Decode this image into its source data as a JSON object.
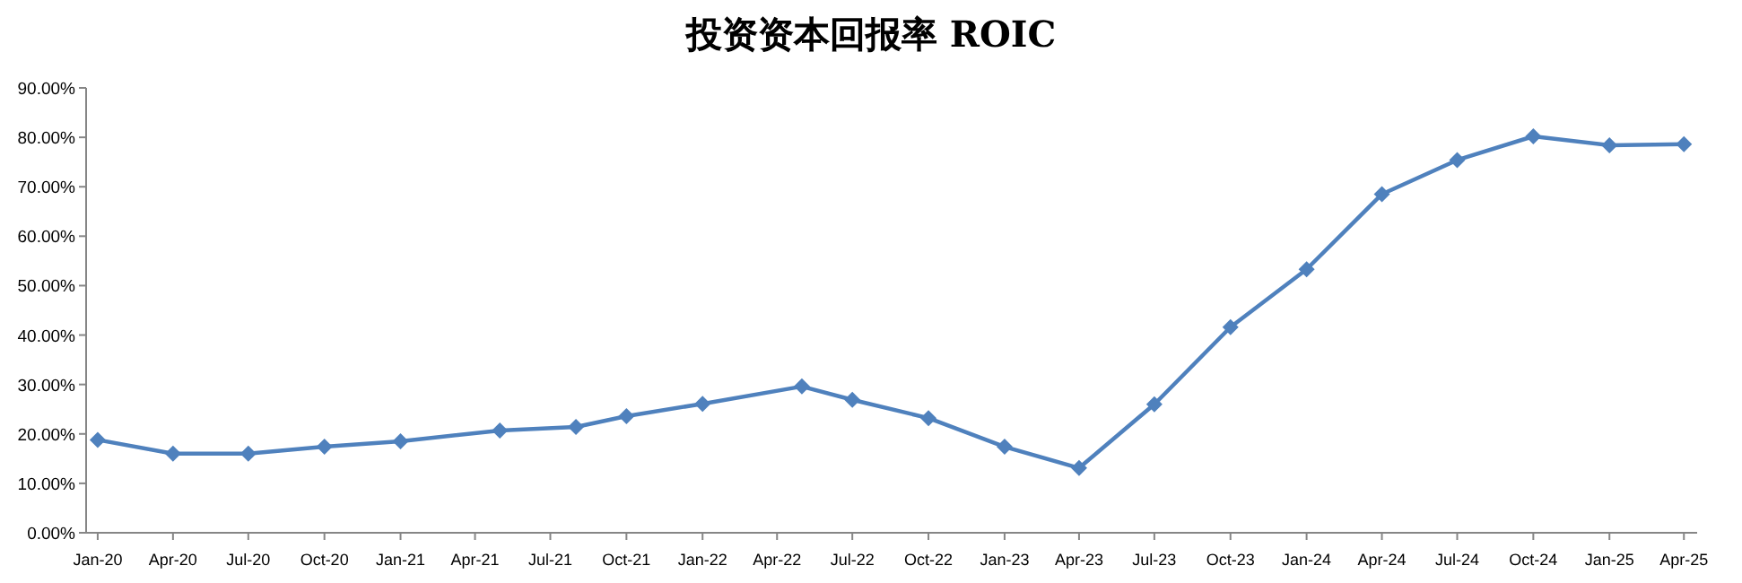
{
  "chart_data": {
    "type": "line",
    "title": "投资资本回报率 ROIC",
    "x": [
      "2020-01-15",
      "2020-04-15",
      "2020-07-15",
      "2020-10-15",
      "2021-01-15",
      "2021-05-15",
      "2021-08-15",
      "2021-10-15",
      "2022-01-15",
      "2022-05-15",
      "2022-07-15",
      "2022-10-15",
      "2023-01-15",
      "2023-04-15",
      "2023-07-15",
      "2023-10-15",
      "2024-01-15",
      "2024-04-15",
      "2024-07-15",
      "2024-10-15",
      "2025-01-15",
      "2025-04-15"
    ],
    "series": [
      {
        "color": "#4f81bd",
        "values": [
          18.8,
          16.0,
          16.0,
          17.4,
          18.5,
          20.7,
          21.4,
          23.6,
          26.1,
          29.6,
          26.9,
          23.2,
          17.4,
          13.1,
          26.0,
          41.6,
          53.3,
          68.5,
          75.4,
          80.2,
          78.4,
          78.6
        ]
      }
    ],
    "xlim": [
      "2020-01-01",
      "2025-05-01"
    ],
    "xticks": [
      {
        "value": "2020-01-15",
        "label": "Jan-20"
      },
      {
        "value": "2020-04-15",
        "label": "Apr-20"
      },
      {
        "value": "2020-07-15",
        "label": "Jul-20"
      },
      {
        "value": "2020-10-15",
        "label": "Oct-20"
      },
      {
        "value": "2021-01-15",
        "label": "Jan-21"
      },
      {
        "value": "2021-04-15",
        "label": "Apr-21"
      },
      {
        "value": "2021-07-15",
        "label": "Jul-21"
      },
      {
        "value": "2021-10-15",
        "label": "Oct-21"
      },
      {
        "value": "2022-01-15",
        "label": "Jan-22"
      },
      {
        "value": "2022-04-15",
        "label": "Apr-22"
      },
      {
        "value": "2022-07-15",
        "label": "Jul-22"
      },
      {
        "value": "2022-10-15",
        "label": "Oct-22"
      },
      {
        "value": "2023-01-15",
        "label": "Jan-23"
      },
      {
        "value": "2023-04-15",
        "label": "Apr-23"
      },
      {
        "value": "2023-07-15",
        "label": "Jul-23"
      },
      {
        "value": "2023-10-15",
        "label": "Oct-23"
      },
      {
        "value": "2024-01-15",
        "label": "Jan-24"
      },
      {
        "value": "2024-04-15",
        "label": "Apr-24"
      },
      {
        "value": "2024-07-15",
        "label": "Jul-24"
      },
      {
        "value": "2024-10-15",
        "label": "Oct-24"
      },
      {
        "value": "2025-01-15",
        "label": "Jan-25"
      },
      {
        "value": "2025-04-15",
        "label": "Apr-25"
      }
    ],
    "ylim": [
      0,
      90
    ],
    "yticks": [
      {
        "value": 0,
        "label": "0.00%"
      },
      {
        "value": 10,
        "label": "10.00%"
      },
      {
        "value": 20,
        "label": "20.00%"
      },
      {
        "value": 30,
        "label": "30.00%"
      },
      {
        "value": 40,
        "label": "40.00%"
      },
      {
        "value": 50,
        "label": "50.00%"
      },
      {
        "value": 60,
        "label": "60.00%"
      },
      {
        "value": 70,
        "label": "70.00%"
      },
      {
        "value": 80,
        "label": "80.00%"
      },
      {
        "value": 90,
        "label": "90.00%"
      }
    ],
    "marker": "diamond",
    "line_style": "solid",
    "grid": false
  }
}
